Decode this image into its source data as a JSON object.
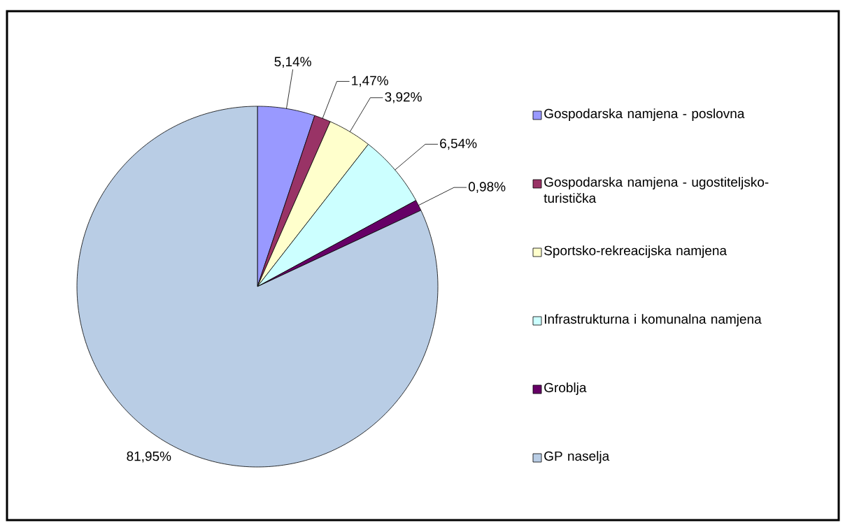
{
  "chart_data": {
    "type": "pie",
    "categories": [
      "Gospodarska namjena - poslovna",
      "Gospodarska namjena - ugostiteljsko-turistička",
      "Sportsko-rekreacijska namjena",
      "Infrastrukturna i  komunalna namjena",
      "Groblja",
      "GP naselja"
    ],
    "values": [
      5.14,
      1.47,
      3.92,
      6.54,
      0.98,
      81.95
    ],
    "colors": [
      "#9999ff",
      "#993366",
      "#ffffcc",
      "#ccffff",
      "#660066",
      "#b9cde5"
    ],
    "value_labels": [
      "5,14%",
      "1,47%",
      "3,92%",
      "6,54%",
      "0,98%",
      "81,95%"
    ],
    "legend": "right"
  }
}
